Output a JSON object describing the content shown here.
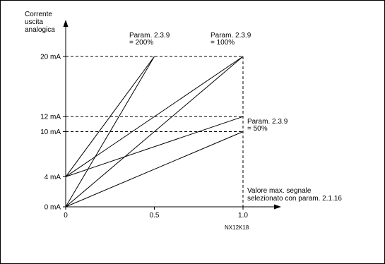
{
  "diagram": {
    "y_axis_title": [
      "Corrente",
      "uscita",
      "analogica"
    ],
    "x_axis_title": [
      "Valore max. segnale",
      "selezionato con param. 2.1.16"
    ],
    "figure_code": "NX12K18",
    "y_ticks": [
      {
        "label": "20 mA",
        "value": 20
      },
      {
        "label": "12 mA",
        "value": 12
      },
      {
        "label": "10 mA",
        "value": 10
      },
      {
        "label": "4 mA",
        "value": 4
      },
      {
        "label": "0 mA",
        "value": 0
      }
    ],
    "x_ticks": [
      {
        "label": "0",
        "value": 0
      },
      {
        "label": "0.5",
        "value": 0.5
      },
      {
        "label": "1.0",
        "value": 1.0
      }
    ],
    "annotations": [
      {
        "lines": [
          "Param. 2.3.9",
          "= 200%"
        ]
      },
      {
        "lines": [
          "Param. 2.3.9",
          "= 100%"
        ]
      },
      {
        "lines": [
          "Param. 2.3.9",
          "= 50%"
        ]
      }
    ]
  },
  "chart_data": {
    "type": "line",
    "xlabel": "Valore max. segnale selezionato con param. 2.1.16",
    "ylabel": "Corrente uscita analogica",
    "xlim": [
      0,
      1.0
    ],
    "ylim": [
      0,
      20
    ],
    "series": [
      {
        "name": "Param. 2.3.9 = 200%",
        "x": [
          0,
          0.5
        ],
        "y": [
          0,
          20
        ]
      },
      {
        "name": "Param. 2.3.9 = 200%",
        "x": [
          0,
          0.5
        ],
        "y": [
          4,
          20
        ]
      },
      {
        "name": "Param. 2.3.9 = 100%",
        "x": [
          0,
          1.0
        ],
        "y": [
          0,
          20
        ]
      },
      {
        "name": "Param. 2.3.9 = 100%",
        "x": [
          0,
          1.0
        ],
        "y": [
          4,
          20
        ]
      },
      {
        "name": "Param. 2.3.9 = 50%",
        "x": [
          0,
          1.0
        ],
        "y": [
          0,
          10
        ]
      },
      {
        "name": "Param. 2.3.9 = 50%",
        "x": [
          0,
          1.0
        ],
        "y": [
          4,
          12
        ]
      }
    ],
    "reference_lines": [
      {
        "axis": "y",
        "value": 20,
        "style": "dashed"
      },
      {
        "axis": "y",
        "value": 12,
        "style": "dashed"
      },
      {
        "axis": "y",
        "value": 10,
        "style": "dashed"
      },
      {
        "axis": "x",
        "value": 1.0,
        "style": "dashed"
      }
    ]
  }
}
